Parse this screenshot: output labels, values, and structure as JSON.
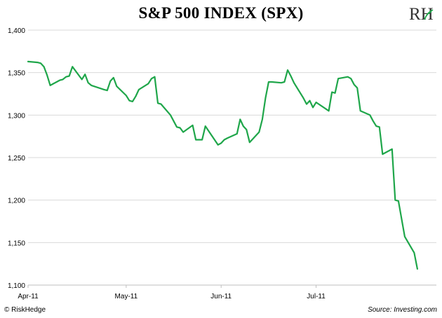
{
  "header": {
    "title": "S&P 500 INDEX (SPX)",
    "logo_text": "RH"
  },
  "footer": {
    "copyright": "© RiskHedge",
    "source": "Source: Investing.com"
  },
  "colors": {
    "line": "#1fa64a",
    "grid": "#d9d9d9",
    "axis": "#bfbfbf"
  },
  "chart_data": {
    "type": "line",
    "title": "S&P 500 INDEX (SPX)",
    "xlabel": "",
    "ylabel": "",
    "ylim": [
      1100,
      1400
    ],
    "yticks": [
      1100,
      1150,
      1200,
      1250,
      1300,
      1350,
      1400
    ],
    "ytick_labels": [
      "1,100",
      "1,150",
      "1,200",
      "1,250",
      "1,300",
      "1,350",
      "1,400"
    ],
    "xticks": [
      {
        "date": "2011-04-01",
        "label": "Apr-11"
      },
      {
        "date": "2011-05-02",
        "label": "May-11"
      },
      {
        "date": "2011-06-01",
        "label": "Jun-11"
      },
      {
        "date": "2011-07-01",
        "label": "Jul-11"
      }
    ],
    "xlim": [
      "2011-04-01",
      "2011-08-08"
    ],
    "grid": true,
    "series": [
      {
        "points": [
          [
            "2011-04-01",
            1363
          ],
          [
            "2011-04-04",
            1362
          ],
          [
            "2011-04-05",
            1361
          ],
          [
            "2011-04-06",
            1357
          ],
          [
            "2011-04-07",
            1347
          ],
          [
            "2011-04-08",
            1335
          ],
          [
            "2011-04-11",
            1341
          ],
          [
            "2011-04-12",
            1342
          ],
          [
            "2011-04-13",
            1345
          ],
          [
            "2011-04-14",
            1346
          ],
          [
            "2011-04-15",
            1357
          ],
          [
            "2011-04-18",
            1342
          ],
          [
            "2011-04-19",
            1348
          ],
          [
            "2011-04-20",
            1338
          ],
          [
            "2011-04-21",
            1335
          ],
          [
            "2011-04-25",
            1330
          ],
          [
            "2011-04-26",
            1329
          ],
          [
            "2011-04-27",
            1340
          ],
          [
            "2011-04-28",
            1344
          ],
          [
            "2011-04-29",
            1334
          ],
          [
            "2011-05-02",
            1323
          ],
          [
            "2011-05-03",
            1317
          ],
          [
            "2011-05-04",
            1316
          ],
          [
            "2011-05-05",
            1322
          ],
          [
            "2011-05-06",
            1330
          ],
          [
            "2011-05-09",
            1337
          ],
          [
            "2011-05-10",
            1343
          ],
          [
            "2011-05-11",
            1345
          ],
          [
            "2011-05-12",
            1314
          ],
          [
            "2011-05-13",
            1313
          ],
          [
            "2011-05-16",
            1300
          ],
          [
            "2011-05-17",
            1293
          ],
          [
            "2011-05-18",
            1286
          ],
          [
            "2011-05-19",
            1285
          ],
          [
            "2011-05-20",
            1280
          ],
          [
            "2011-05-23",
            1288
          ],
          [
            "2011-05-24",
            1271
          ],
          [
            "2011-05-25",
            1271
          ],
          [
            "2011-05-26",
            1271
          ],
          [
            "2011-05-27",
            1287
          ],
          [
            "2011-05-31",
            1265
          ],
          [
            "2011-06-01",
            1267
          ],
          [
            "2011-06-02",
            1271
          ],
          [
            "2011-06-03",
            1273
          ],
          [
            "2011-06-06",
            1278
          ],
          [
            "2011-06-07",
            1295
          ],
          [
            "2011-06-08",
            1287
          ],
          [
            "2011-06-09",
            1283
          ],
          [
            "2011-06-10",
            1268
          ],
          [
            "2011-06-13",
            1280
          ],
          [
            "2011-06-14",
            1295
          ],
          [
            "2011-06-15",
            1320
          ],
          [
            "2011-06-16",
            1339
          ],
          [
            "2011-06-17",
            1339
          ],
          [
            "2011-06-20",
            1338
          ],
          [
            "2011-06-21",
            1339
          ],
          [
            "2011-06-22",
            1353
          ],
          [
            "2011-06-23",
            1346
          ],
          [
            "2011-06-24",
            1338
          ],
          [
            "2011-06-27",
            1320
          ],
          [
            "2011-06-28",
            1313
          ],
          [
            "2011-06-29",
            1317
          ],
          [
            "2011-06-30",
            1309
          ],
          [
            "2011-07-01",
            1315
          ],
          [
            "2011-07-05",
            1305
          ],
          [
            "2011-07-06",
            1327
          ],
          [
            "2011-07-07",
            1326
          ],
          [
            "2011-07-08",
            1343
          ],
          [
            "2011-07-11",
            1345
          ],
          [
            "2011-07-12",
            1343
          ],
          [
            "2011-07-13",
            1336
          ],
          [
            "2011-07-14",
            1332
          ],
          [
            "2011-07-15",
            1305
          ],
          [
            "2011-07-18",
            1300
          ],
          [
            "2011-07-19",
            1293
          ],
          [
            "2011-07-20",
            1287
          ],
          [
            "2011-07-21",
            1286
          ],
          [
            "2011-07-22",
            1254
          ],
          [
            "2011-07-25",
            1260
          ],
          [
            "2011-07-26",
            1200
          ],
          [
            "2011-07-27",
            1199
          ],
          [
            "2011-07-28",
            1178
          ],
          [
            "2011-07-29",
            1157
          ],
          [
            "2011-08-01",
            1138
          ],
          [
            "2011-08-02",
            1119
          ]
        ]
      }
    ]
  }
}
